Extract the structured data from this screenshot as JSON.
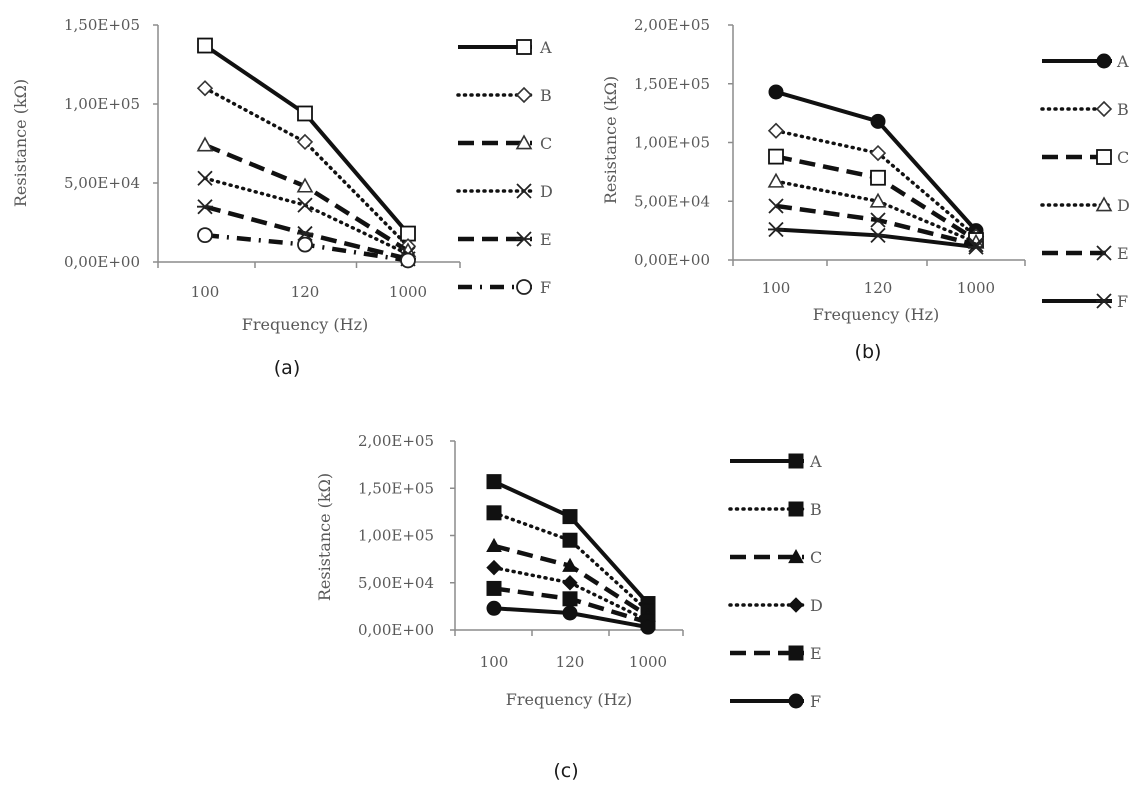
{
  "chart_data": [
    {
      "type": "line",
      "panel_label": "(a)",
      "categories": [
        "100",
        "120",
        "1000"
      ],
      "xlabel": "Frequency (Hz)",
      "ylabel": "Resistance (kΩ)",
      "ylim": [
        0,
        150000
      ],
      "yticks": [
        "0,00E+00",
        "5,00E+04",
        "1,00E+05",
        "1,50E+05"
      ],
      "grid": false,
      "legend_position": "right",
      "series": [
        {
          "name": "A",
          "values": [
            137000,
            94000,
            18000
          ],
          "line": "solid",
          "marker": "square-open"
        },
        {
          "name": "B",
          "values": [
            110000,
            76000,
            10000
          ],
          "line": "dotted",
          "marker": "diamond-open"
        },
        {
          "name": "C",
          "values": [
            74000,
            48000,
            7000
          ],
          "line": "dashed",
          "marker": "triangle-open"
        },
        {
          "name": "D",
          "values": [
            53000,
            36000,
            5000
          ],
          "line": "dotted",
          "marker": "x"
        },
        {
          "name": "E",
          "values": [
            35000,
            18000,
            2000
          ],
          "line": "dashed",
          "marker": "star"
        },
        {
          "name": "F",
          "values": [
            17000,
            11000,
            1000
          ],
          "line": "dashdot",
          "marker": "circle-open"
        }
      ]
    },
    {
      "type": "line",
      "panel_label": "(b)",
      "categories": [
        "100",
        "120",
        "1000"
      ],
      "xlabel": "Frequency (Hz)",
      "ylabel": "Resistance (kΩ)",
      "ylim": [
        0,
        200000
      ],
      "yticks": [
        "0,00E+00",
        "5,00E+04",
        "1,00E+05",
        "1,50E+05",
        "2,00E+05"
      ],
      "grid": false,
      "legend_position": "right",
      "series": [
        {
          "name": "A",
          "values": [
            143000,
            118000,
            25000
          ],
          "line": "solid",
          "marker": "circle-filled"
        },
        {
          "name": "B",
          "values": [
            110000,
            91000,
            20000
          ],
          "line": "dotted",
          "marker": "diamond-open"
        },
        {
          "name": "C",
          "values": [
            88000,
            70000,
            17000
          ],
          "line": "dashed",
          "marker": "square-open"
        },
        {
          "name": "D",
          "values": [
            67000,
            50000,
            15000
          ],
          "line": "dotted",
          "marker": "triangle-open"
        },
        {
          "name": "E",
          "values": [
            46000,
            34000,
            13000
          ],
          "line": "dashed",
          "marker": "x"
        },
        {
          "name": "F",
          "values": [
            26000,
            21000,
            11000
          ],
          "line": "solid",
          "marker": "star"
        }
      ]
    },
    {
      "type": "line",
      "panel_label": "(c)",
      "categories": [
        "100",
        "120",
        "1000"
      ],
      "xlabel": "Frequency (Hz)",
      "ylabel": "Resistance (kΩ)",
      "ylim": [
        0,
        200000
      ],
      "yticks": [
        "0,00E+00",
        "5,00E+04",
        "1,00E+05",
        "1,50E+05",
        "2,00E+05"
      ],
      "grid": false,
      "legend_position": "right",
      "series": [
        {
          "name": "A",
          "values": [
            157000,
            120000,
            28000
          ],
          "line": "solid",
          "marker": "square-filled"
        },
        {
          "name": "B",
          "values": [
            124000,
            95000,
            20000
          ],
          "line": "dotted",
          "marker": "square-filled"
        },
        {
          "name": "C",
          "values": [
            89000,
            68000,
            15000
          ],
          "line": "dashed",
          "marker": "triangle-filled"
        },
        {
          "name": "D",
          "values": [
            66000,
            50000,
            10000
          ],
          "line": "dotted",
          "marker": "diamond-filled"
        },
        {
          "name": "E",
          "values": [
            44000,
            33000,
            8000
          ],
          "line": "dashed",
          "marker": "square-filled"
        },
        {
          "name": "F",
          "values": [
            23000,
            18000,
            3000
          ],
          "line": "solid",
          "marker": "circle-filled"
        }
      ]
    }
  ]
}
